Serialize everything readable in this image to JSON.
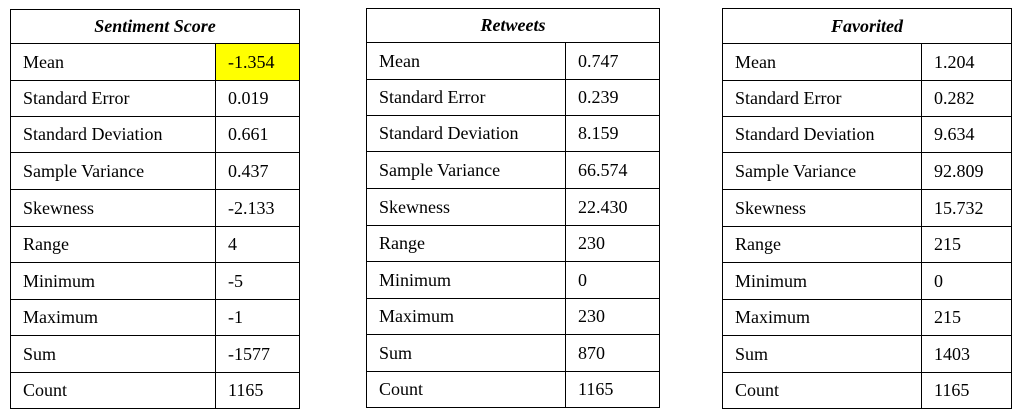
{
  "tables": [
    {
      "title": "Sentiment Score",
      "rows": [
        {
          "label": "Mean",
          "value": "-1.354",
          "highlight": true
        },
        {
          "label": "Standard Error",
          "value": "0.019"
        },
        {
          "label": "Standard Deviation",
          "value": "0.661"
        },
        {
          "label": "Sample Variance",
          "value": "0.437"
        },
        {
          "label": "Skewness",
          "value": "-2.133"
        },
        {
          "label": "Range",
          "value": "4"
        },
        {
          "label": "Minimum",
          "value": "-5"
        },
        {
          "label": "Maximum",
          "value": "-1"
        },
        {
          "label": "Sum",
          "value": "-1577"
        },
        {
          "label": "Count",
          "value": "1165"
        }
      ]
    },
    {
      "title": "Retweets",
      "rows": [
        {
          "label": "Mean",
          "value": "0.747"
        },
        {
          "label": "Standard Error",
          "value": "0.239"
        },
        {
          "label": "Standard Deviation",
          "value": "8.159"
        },
        {
          "label": "Sample Variance",
          "value": "66.574"
        },
        {
          "label": "Skewness",
          "value": "22.430"
        },
        {
          "label": "Range",
          "value": "230"
        },
        {
          "label": "Minimum",
          "value": "0"
        },
        {
          "label": "Maximum",
          "value": "230"
        },
        {
          "label": "Sum",
          "value": "870"
        },
        {
          "label": "Count",
          "value": "1165"
        }
      ]
    },
    {
      "title": "Favorited",
      "rows": [
        {
          "label": "Mean",
          "value": "1.204"
        },
        {
          "label": "Standard Error",
          "value": "0.282"
        },
        {
          "label": "Standard Deviation",
          "value": "9.634"
        },
        {
          "label": "Sample Variance",
          "value": "92.809"
        },
        {
          "label": "Skewness",
          "value": "15.732"
        },
        {
          "label": "Range",
          "value": "215"
        },
        {
          "label": "Minimum",
          "value": "0"
        },
        {
          "label": "Maximum",
          "value": "215"
        },
        {
          "label": "Sum",
          "value": "1403"
        },
        {
          "label": "Count",
          "value": "1165"
        }
      ]
    }
  ],
  "colors": {
    "highlight": "#ffff00",
    "border": "#000000"
  }
}
